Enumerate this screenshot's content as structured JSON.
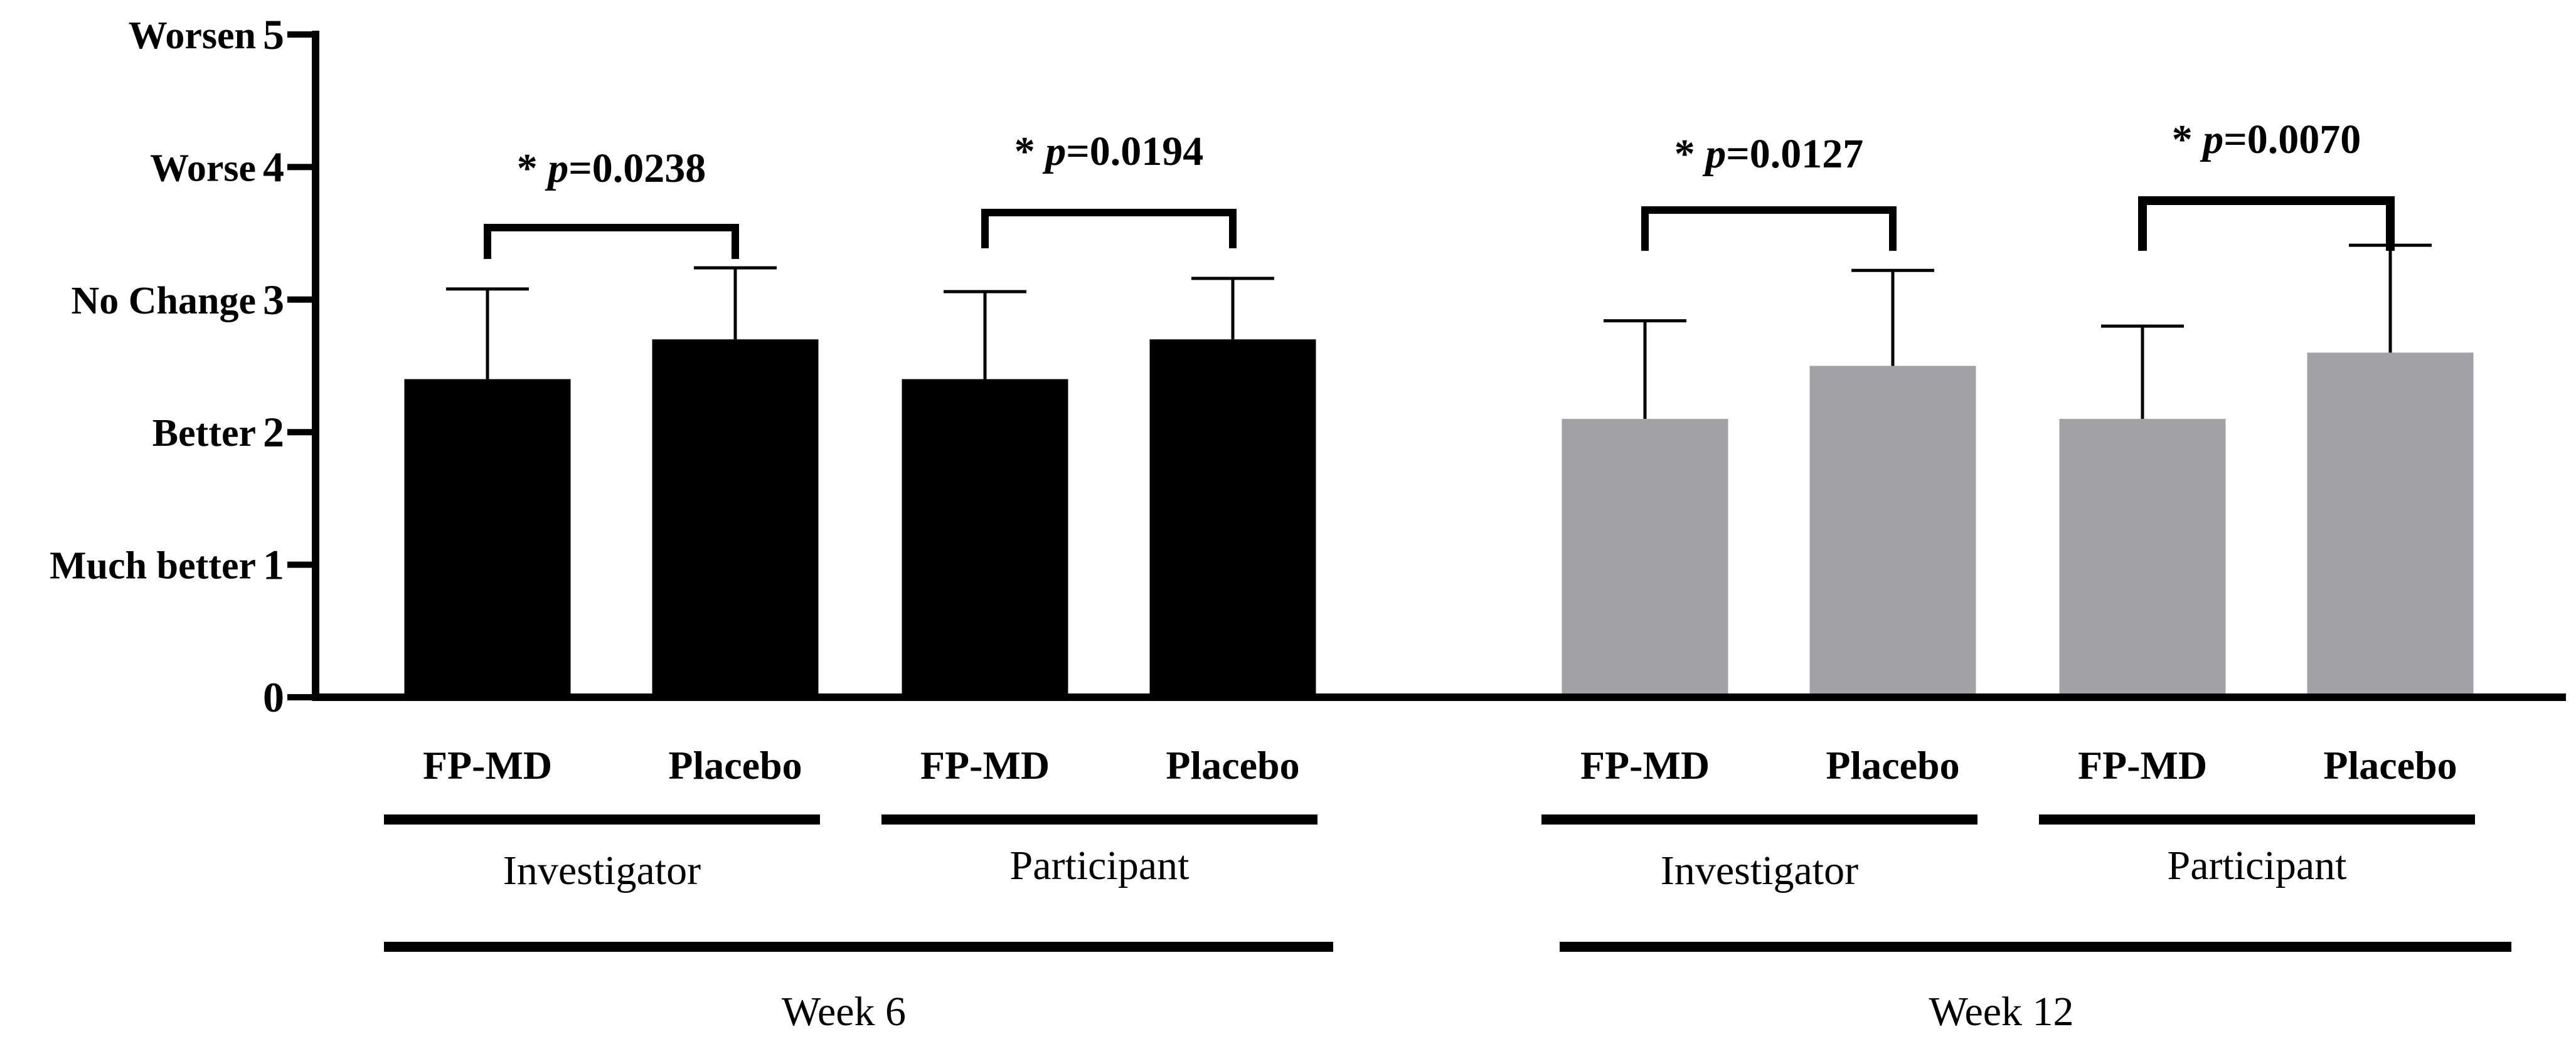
{
  "chart_data": {
    "type": "bar",
    "title": "",
    "xlabel": "",
    "ylabel": "",
    "ylim": [
      0,
      5
    ],
    "yticks": [
      {
        "value": 0,
        "number": "0",
        "word": ""
      },
      {
        "value": 1,
        "number": "1",
        "word": "Much better"
      },
      {
        "value": 2,
        "number": "2",
        "word": "Better"
      },
      {
        "value": 3,
        "number": "3",
        "word": "No Change"
      },
      {
        "value": 4,
        "number": "4",
        "word": "Worse"
      },
      {
        "value": 5,
        "number": "5",
        "word": "Worsen"
      }
    ],
    "colors": {
      "week6": "#000000",
      "week12": "#a1a1a6",
      "axis": "#000000"
    },
    "bars": [
      {
        "week": "Week 6",
        "assessor": "Investigator",
        "arm": "FP-MD",
        "value": 2.4,
        "error": 0.68,
        "color_key": "week6"
      },
      {
        "week": "Week 6",
        "assessor": "Investigator",
        "arm": "Placebo",
        "value": 2.7,
        "error": 0.54,
        "color_key": "week6"
      },
      {
        "week": "Week 6",
        "assessor": "Participant",
        "arm": "FP-MD",
        "value": 2.4,
        "error": 0.66,
        "color_key": "week6"
      },
      {
        "week": "Week 6",
        "assessor": "Participant",
        "arm": "Placebo",
        "value": 2.7,
        "error": 0.46,
        "color_key": "week6"
      },
      {
        "week": "Week 12",
        "assessor": "Investigator",
        "arm": "FP-MD",
        "value": 2.1,
        "error": 0.74,
        "color_key": "week12"
      },
      {
        "week": "Week 12",
        "assessor": "Investigator",
        "arm": "Placebo",
        "value": 2.5,
        "error": 0.72,
        "color_key": "week12"
      },
      {
        "week": "Week 12",
        "assessor": "Participant",
        "arm": "FP-MD",
        "value": 2.1,
        "error": 0.7,
        "color_key": "week12"
      },
      {
        "week": "Week 12",
        "assessor": "Participant",
        "arm": "Placebo",
        "value": 2.6,
        "error": 0.81,
        "color_key": "week12"
      }
    ],
    "comparisons": [
      {
        "bars": [
          0,
          1
        ],
        "star": "*",
        "p_label": "p",
        "p_value": "=0.0238"
      },
      {
        "bars": [
          2,
          3
        ],
        "star": "*",
        "p_label": "p",
        "p_value": "=0.0194"
      },
      {
        "bars": [
          4,
          5
        ],
        "star": "*",
        "p_label": "p",
        "p_value": "=0.0127"
      },
      {
        "bars": [
          6,
          7
        ],
        "star": "*",
        "p_label": "p",
        "p_value": "=0.0070"
      }
    ],
    "assessor_groups": [
      {
        "label": "Investigator",
        "bars": [
          0,
          1
        ]
      },
      {
        "label": "Participant",
        "bars": [
          2,
          3
        ]
      },
      {
        "label": "Investigator",
        "bars": [
          4,
          5
        ]
      },
      {
        "label": "Participant",
        "bars": [
          6,
          7
        ]
      }
    ],
    "week_groups": [
      {
        "label": "Week 6",
        "bars": [
          0,
          1,
          2,
          3
        ]
      },
      {
        "label": "Week 12",
        "bars": [
          4,
          5,
          6,
          7
        ]
      }
    ]
  }
}
